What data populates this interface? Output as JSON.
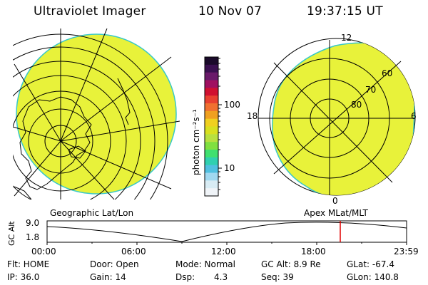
{
  "header": {
    "title": "Ultraviolet Imager",
    "date": "10 Nov 07",
    "time": "19:37:15 UT"
  },
  "colors": {
    "auroral_fill": "#e8f23a",
    "edge": "#38c8c8",
    "line": "#000000",
    "marker": "#e00000"
  },
  "colorbar": {
    "unit_label": "photon cm⁻²s⁻¹",
    "ticks": [
      "100",
      "10"
    ],
    "stops": [
      "#1a0a2a",
      "#3a1050",
      "#6a1a6a",
      "#a01060",
      "#d01030",
      "#e84030",
      "#f07030",
      "#f0a020",
      "#f0d020",
      "#d8e020",
      "#b8e040",
      "#80e040",
      "#40e070",
      "#30d0b0",
      "#50c0e0",
      "#a0d8f0",
      "#d8ecf4",
      "#f0f4f8"
    ]
  },
  "left_map": {
    "caption": "Geographic Lat/Lon"
  },
  "right_map": {
    "caption": "Apex MLat/MLT",
    "mlt_labels": {
      "top": "12",
      "left": "18",
      "right": "6",
      "bottom": "0"
    },
    "mlat_labels": [
      "60",
      "70",
      "80"
    ]
  },
  "timeline": {
    "y_axis_label": "GC Alt",
    "y_ticks": [
      "9.0",
      "1.8"
    ],
    "x_ticks": [
      "00:00",
      "06:00",
      "12:00",
      "18:00",
      "23:59"
    ],
    "marker_time": "19:37"
  },
  "info": {
    "row1": {
      "flt": "Flt: HOME",
      "door": "Door: Open",
      "mode": "Mode: Normal",
      "gcalt": "GC Alt: 8.9 Re",
      "glat": "GLat: -67.4"
    },
    "row2": {
      "ip": "IP: 36.0",
      "gain": "Gain: 14",
      "dsp_label": "Dsp:",
      "dsp_value": "4.3",
      "seq": "Seq: 39",
      "glon": "GLon: 140.8"
    }
  }
}
